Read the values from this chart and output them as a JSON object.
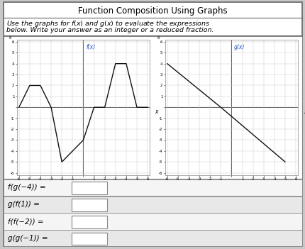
{
  "title": "Function Composition Using Graphs",
  "fx_label": "f(x)",
  "gx_label": "g(x)",
  "fx_points": [
    [
      -6,
      0
    ],
    [
      -5,
      2
    ],
    [
      -4,
      2
    ],
    [
      -3,
      0
    ],
    [
      -2,
      -5
    ],
    [
      -1,
      -4
    ],
    [
      0,
      -3
    ],
    [
      1,
      0
    ],
    [
      2,
      0
    ],
    [
      3,
      4
    ],
    [
      4,
      4
    ],
    [
      5,
      0
    ],
    [
      6,
      0
    ]
  ],
  "gx_points": [
    [
      -6,
      4
    ],
    [
      -1,
      0
    ],
    [
      5,
      -5
    ]
  ],
  "expressions": [
    "f(g(−4)) =",
    "g(f(1)) =",
    "f(f(−2)) =",
    "g(g(−1)) ="
  ],
  "subtitle_line1": "Use the graphs for $f(x)$ and $g(x)$ to evaluate the expressions",
  "subtitle_line2": "below. Write your answer as an integer or a reduced fraction.",
  "bg_color": "#c8c8c8",
  "outer_rect_color": "white",
  "graph_bg": "white",
  "grid_color": "#cccccc",
  "line_color": "#111111",
  "label_color": "#2255cc",
  "row_bg_even": "#f5f5f5",
  "row_bg_odd": "#e8e8e8",
  "title_fontsize": 8.5,
  "subtitle_fontsize": 6.8,
  "expr_fontsize": 7.5
}
